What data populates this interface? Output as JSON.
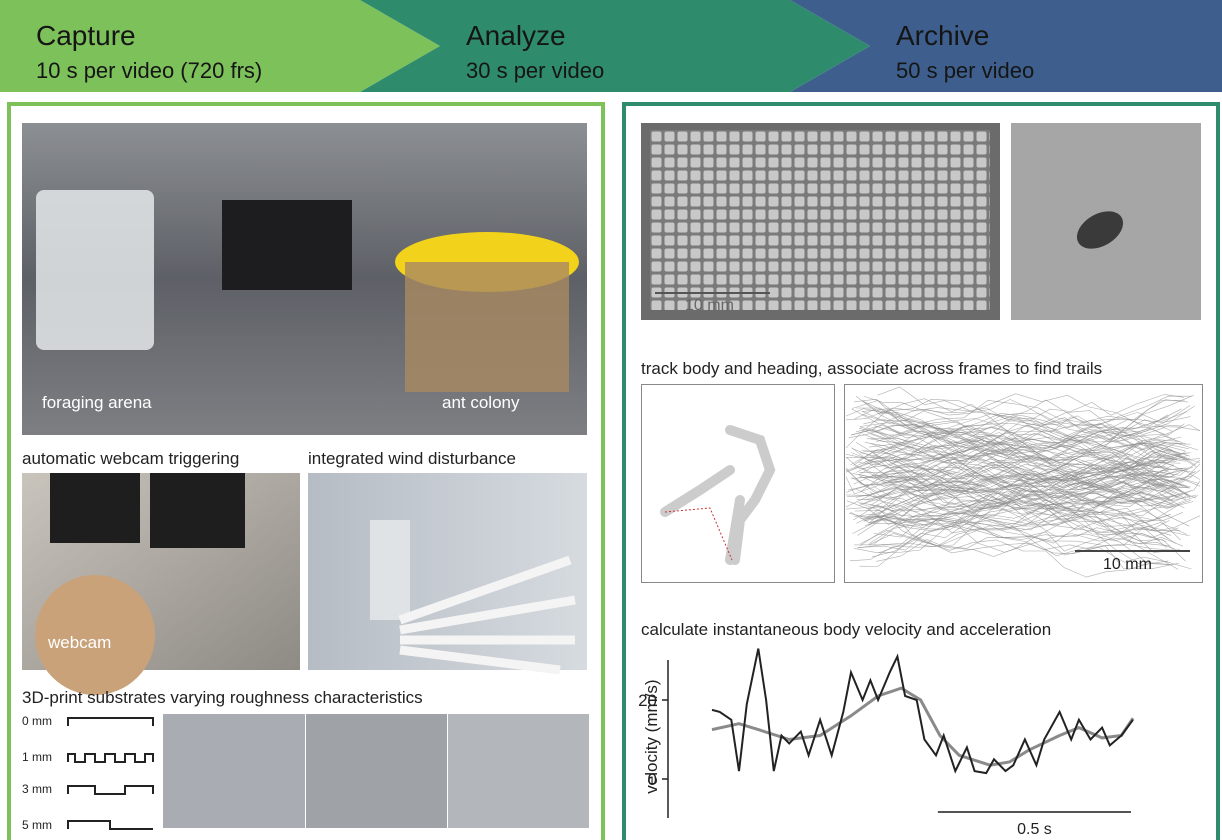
{
  "header": {
    "steps": [
      {
        "title": "Capture",
        "subtitle": "10 s per video (720 frs)"
      },
      {
        "title": "Analyze",
        "subtitle": "30 s per video"
      },
      {
        "title": "Archive",
        "subtitle": "50 s per video"
      }
    ]
  },
  "capture_panel": {
    "photo_labels": [
      "foraging arena",
      "ant colony"
    ],
    "webcam_caption": "automatic webcam triggering",
    "webcam_label": "webcam",
    "wind_caption": "integrated wind disturbance",
    "substrate_caption": "3D-print substrates varying roughness characteristics",
    "roughness_levels": [
      "0 mm",
      "1 mm",
      "3 mm",
      "5 mm"
    ]
  },
  "analyze_panel": {
    "arena_scale": "10 mm",
    "tracking_caption": "track body and heading, associate across frames to find trails",
    "trails_scale": "10 mm",
    "velocity_caption": "calculate instantaneous body velocity and acceleration",
    "velocity_plot": {
      "type": "line",
      "ylabel": "velocity (mm/s)",
      "ylim": [
        -10,
        34
      ],
      "yticks": [
        0,
        20
      ],
      "xlim": [
        0,
        1.09
      ],
      "scale_bar": {
        "value": 0.5,
        "label": "0.5 s"
      },
      "series": [
        {
          "color": "#222222",
          "x": [
            0,
            0.02,
            0.05,
            0.07,
            0.09,
            0.12,
            0.14,
            0.16,
            0.18,
            0.2,
            0.23,
            0.25,
            0.28,
            0.31,
            0.34,
            0.36,
            0.39,
            0.41,
            0.43,
            0.46,
            0.48,
            0.5,
            0.53,
            0.55,
            0.58,
            0.6,
            0.63,
            0.66,
            0.68,
            0.71,
            0.73,
            0.76,
            0.78,
            0.81,
            0.84,
            0.86,
            0.9,
            0.93,
            0.95,
            0.98,
            1.01,
            1.03,
            1.06,
            1.09
          ],
          "values": [
            17.5,
            17,
            15,
            2,
            19,
            33,
            20,
            2,
            11,
            9,
            12,
            6,
            15,
            6,
            17,
            27,
            20,
            25,
            20,
            27,
            31,
            21,
            20,
            10,
            6,
            11,
            2,
            8,
            2,
            1.5,
            5,
            2,
            3.5,
            10,
            3.5,
            10,
            17,
            10,
            15,
            10,
            13,
            8.5,
            11,
            15
          ]
        },
        {
          "color": "#8a8a8a",
          "x": [
            0,
            0.07,
            0.12,
            0.2,
            0.28,
            0.36,
            0.43,
            0.49,
            0.54,
            0.59,
            0.64,
            0.72,
            0.77,
            0.82,
            0.9,
            0.95,
            1.01,
            1.06,
            1.09
          ],
          "values": [
            12.5,
            14,
            12.5,
            10,
            11,
            16,
            21,
            23,
            20,
            11,
            6,
            3.5,
            4.3,
            7.3,
            11,
            13,
            10.4,
            11,
            15.4
          ]
        }
      ]
    }
  }
}
